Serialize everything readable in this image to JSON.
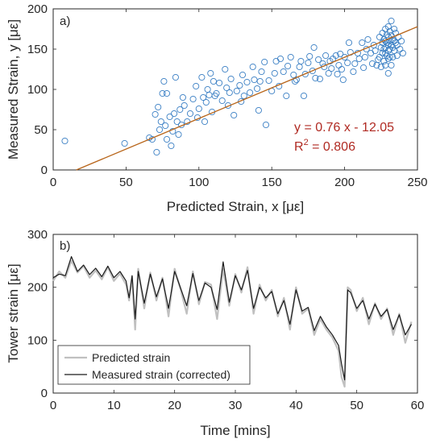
{
  "chart_data": [
    {
      "type": "scatter",
      "panel_label": "a)",
      "xlabel": "Predicted Strain, x [με]",
      "ylabel": "Measured Strain, y [με]",
      "xlim": [
        0,
        250
      ],
      "ylim": [
        0,
        200
      ],
      "xticks": [
        "0",
        "50",
        "100",
        "150",
        "200",
        "250"
      ],
      "yticks": [
        "0",
        "50",
        "100",
        "150",
        "200"
      ],
      "fit": {
        "slope": 0.76,
        "intercept": -12.05,
        "equation": "y = 0.76 x - 12.05",
        "r2_prefix": "R",
        "r2_sup": "2",
        "r2_suffix": " = 0.806"
      },
      "colors": {
        "points": "#3a7fc4",
        "fit_line": "#b8651a",
        "annotation": "#b02a22"
      },
      "points": [
        [
          8,
          36
        ],
        [
          49,
          33
        ],
        [
          66,
          40
        ],
        [
          68,
          38
        ],
        [
          71,
          22
        ],
        [
          70,
          69
        ],
        [
          72,
          78
        ],
        [
          73,
          50
        ],
        [
          74,
          60
        ],
        [
          75,
          95
        ],
        [
          76,
          110
        ],
        [
          77,
          55
        ],
        [
          78,
          38
        ],
        [
          78,
          95
        ],
        [
          80,
          66
        ],
        [
          81,
          30
        ],
        [
          82,
          48
        ],
        [
          83,
          70
        ],
        [
          84,
          115
        ],
        [
          85,
          60
        ],
        [
          86,
          44
        ],
        [
          87,
          75
        ],
        [
          88,
          56
        ],
        [
          89,
          90
        ],
        [
          90,
          80
        ],
        [
          92,
          60
        ],
        [
          94,
          70
        ],
        [
          96,
          88
        ],
        [
          98,
          104
        ],
        [
          99,
          65
        ],
        [
          100,
          76
        ],
        [
          102,
          115
        ],
        [
          103,
          90
        ],
        [
          104,
          60
        ],
        [
          105,
          84
        ],
        [
          106,
          100
        ],
        [
          107,
          93
        ],
        [
          108,
          120
        ],
        [
          109,
          72
        ],
        [
          110,
          110
        ],
        [
          111,
          92
        ],
        [
          112,
          95
        ],
        [
          114,
          108
        ],
        [
          116,
          86
        ],
        [
          118,
          125
        ],
        [
          119,
          102
        ],
        [
          120,
          80
        ],
        [
          121,
          96
        ],
        [
          122,
          113
        ],
        [
          124,
          68
        ],
        [
          126,
          98
        ],
        [
          128,
          105
        ],
        [
          129,
          85
        ],
        [
          130,
          118
        ],
        [
          131,
          92
        ],
        [
          133,
          109
        ],
        [
          135,
          96
        ],
        [
          137,
          128
        ],
        [
          138,
          112
        ],
        [
          140,
          101
        ],
        [
          141,
          74
        ],
        [
          142,
          110
        ],
        [
          143,
          122
        ],
        [
          145,
          134
        ],
        [
          146,
          56
        ],
        [
          148,
          111
        ],
        [
          150,
          98
        ],
        [
          152,
          120
        ],
        [
          153,
          135
        ],
        [
          155,
          104
        ],
        [
          156,
          138
        ],
        [
          158,
          122
        ],
        [
          160,
          92
        ],
        [
          161,
          129
        ],
        [
          163,
          140
        ],
        [
          165,
          118
        ],
        [
          166,
          110
        ],
        [
          167,
          112
        ],
        [
          169,
          128
        ],
        [
          170,
          135
        ],
        [
          172,
          92
        ],
        [
          173,
          119
        ],
        [
          175,
          133
        ],
        [
          176,
          141
        ],
        [
          178,
          123
        ],
        [
          179,
          152
        ],
        [
          180,
          114
        ],
        [
          182,
          137
        ],
        [
          183,
          113
        ],
        [
          185,
          132
        ],
        [
          186,
          128
        ],
        [
          187,
          142
        ],
        [
          189,
          120
        ],
        [
          190,
          135
        ],
        [
          191,
          126
        ],
        [
          192,
          138
        ],
        [
          194,
          142
        ],
        [
          195,
          119
        ],
        [
          196,
          130
        ],
        [
          197,
          144
        ],
        [
          198,
          125
        ],
        [
          199,
          112
        ],
        [
          200,
          140
        ],
        [
          202,
          133
        ],
        [
          203,
          158
        ],
        [
          204,
          146
        ],
        [
          206,
          122
        ],
        [
          207,
          132
        ],
        [
          209,
          145
        ],
        [
          210,
          138
        ],
        [
          212,
          158
        ],
        [
          213,
          127
        ],
        [
          214,
          140
        ],
        [
          215,
          150
        ],
        [
          216,
          162
        ],
        [
          218,
          145
        ],
        [
          219,
          132
        ],
        [
          220,
          155
        ],
        [
          221,
          148
        ],
        [
          222,
          130
        ],
        [
          223,
          137
        ],
        [
          224,
          165
        ],
        [
          224,
          140
        ],
        [
          225,
          152
        ],
        [
          225,
          128
        ],
        [
          226,
          170
        ],
        [
          226,
          158
        ],
        [
          226,
          145
        ],
        [
          227,
          162
        ],
        [
          227,
          150
        ],
        [
          227,
          135
        ],
        [
          228,
          175
        ],
        [
          228,
          160
        ],
        [
          228,
          152
        ],
        [
          228,
          145
        ],
        [
          228,
          130
        ],
        [
          229,
          168
        ],
        [
          229,
          158
        ],
        [
          229,
          142
        ],
        [
          230,
          178
        ],
        [
          230,
          165
        ],
        [
          230,
          155
        ],
        [
          230,
          148
        ],
        [
          230,
          138
        ],
        [
          230,
          120
        ],
        [
          231,
          172
        ],
        [
          231,
          160
        ],
        [
          231,
          150
        ],
        [
          231,
          140
        ],
        [
          232,
          185
        ],
        [
          232,
          167
        ],
        [
          232,
          155
        ],
        [
          232,
          130
        ],
        [
          233,
          162
        ],
        [
          233,
          152
        ],
        [
          233,
          140
        ],
        [
          234,
          175
        ],
        [
          234,
          160
        ],
        [
          234,
          148
        ],
        [
          235,
          158
        ],
        [
          235,
          170
        ],
        [
          236,
          142
        ],
        [
          236,
          155
        ],
        [
          237,
          165
        ],
        [
          238,
          150
        ],
        [
          239,
          160
        ],
        [
          240,
          145
        ]
      ]
    },
    {
      "type": "line",
      "panel_label": "b)",
      "xlabel": "Time [mins]",
      "ylabel": "Tower strain [με]",
      "xlim": [
        0,
        60
      ],
      "ylim": [
        0,
        300
      ],
      "xticks": [
        "0",
        "10",
        "20",
        "30",
        "40",
        "50",
        "60"
      ],
      "yticks": [
        "0",
        "100",
        "200",
        "300"
      ],
      "legend_position": "bottom-left",
      "series": [
        {
          "name": "Predicted strain",
          "color": "#c0c0c0",
          "x": [
            0,
            1,
            2,
            3,
            4,
            5,
            6,
            7,
            8,
            9,
            10,
            11,
            12,
            12.5,
            13,
            13.5,
            14,
            15,
            16,
            17,
            18,
            19,
            20,
            21,
            22,
            23,
            24,
            25,
            26,
            27,
            28,
            29,
            30,
            31,
            32,
            33,
            34,
            35,
            36,
            37,
            38,
            39,
            40,
            41,
            42,
            43,
            44,
            45,
            46,
            47,
            47.5,
            48,
            48.5,
            49,
            50,
            51,
            52,
            53,
            54,
            55,
            56,
            57,
            58,
            59
          ],
          "y": [
            212,
            230,
            218,
            250,
            228,
            240,
            218,
            232,
            215,
            238,
            212,
            226,
            205,
            175,
            220,
            120,
            235,
            160,
            228,
            175,
            218,
            145,
            235,
            195,
            150,
            230,
            168,
            210,
            205,
            140,
            235,
            165,
            225,
            190,
            238,
            150,
            205,
            175,
            195,
            145,
            180,
            120,
            200,
            150,
            160,
            110,
            140,
            120,
            105,
            80,
            30,
            12,
            200,
            195,
            155,
            180,
            130,
            170,
            140,
            160,
            110,
            150,
            95,
            135
          ]
        },
        {
          "name": "Measured strain (corrected)",
          "color": "#1a1a1a",
          "x": [
            0,
            1,
            2,
            3,
            4,
            5,
            6,
            7,
            8,
            9,
            10,
            11,
            12,
            12.5,
            13,
            13.5,
            14,
            15,
            16,
            17,
            18,
            19,
            20,
            21,
            22,
            23,
            24,
            25,
            26,
            27,
            28,
            29,
            30,
            31,
            32,
            33,
            34,
            35,
            36,
            37,
            38,
            39,
            40,
            41,
            42,
            43,
            44,
            45,
            46,
            47,
            47.5,
            48,
            48.5,
            49,
            50,
            51,
            52,
            53,
            54,
            55,
            56,
            57,
            58,
            59
          ],
          "y": [
            218,
            225,
            222,
            258,
            230,
            242,
            224,
            236,
            220,
            240,
            218,
            230,
            212,
            180,
            222,
            140,
            230,
            170,
            225,
            182,
            216,
            160,
            230,
            198,
            165,
            226,
            175,
            208,
            200,
            158,
            248,
            172,
            222,
            195,
            232,
            160,
            200,
            180,
            192,
            150,
            175,
            130,
            195,
            155,
            162,
            118,
            145,
            125,
            110,
            90,
            55,
            25,
            195,
            190,
            160,
            175,
            140,
            168,
            145,
            158,
            120,
            148,
            110,
            130
          ]
        }
      ]
    }
  ]
}
